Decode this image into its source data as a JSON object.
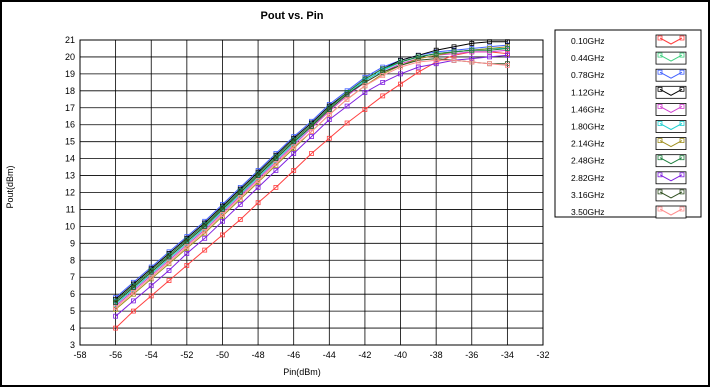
{
  "chart_data": {
    "type": "line",
    "title": "Pout vs. Pin",
    "xlabel": "Pin(dBm)",
    "ylabel": "Pout(dBm)",
    "xlim": [
      -58,
      -32
    ],
    "ylim": [
      3,
      21
    ],
    "x_ticks": [
      -58,
      -56,
      -54,
      -52,
      -50,
      -48,
      -46,
      -44,
      -42,
      -40,
      -38,
      -36,
      -34,
      -32
    ],
    "y_ticks": [
      3,
      4,
      5,
      6,
      7,
      8,
      9,
      10,
      11,
      12,
      13,
      14,
      15,
      16,
      17,
      18,
      19,
      20,
      21
    ],
    "grid": true,
    "legend_position": "top-right",
    "x": [
      -56.5,
      -56,
      -55.5,
      -55,
      -54.5,
      -54,
      -53.5,
      -53,
      -52.5,
      -52,
      -51.5,
      -51,
      -50.5,
      -50,
      -49.5,
      -49,
      -48.5,
      -48,
      -47.5,
      -47,
      -46.5,
      -46,
      -45.5,
      -45,
      -44.5,
      -44,
      -43.5,
      -43,
      -42.5,
      -42,
      -41.5,
      -41,
      -40.5,
      -40,
      -39.5,
      -39,
      -38.5,
      -38,
      -37.5,
      -37,
      -36.5,
      -36,
      -35.5,
      -35,
      -34.5,
      -34
    ],
    "series": [
      {
        "name": "0.10GHz",
        "color": "#ff4040",
        "marker": "square",
        "values": [
          null,
          4.0,
          null,
          5.0,
          null,
          5.9,
          null,
          6.8,
          null,
          7.7,
          null,
          8.6,
          null,
          9.5,
          null,
          10.4,
          null,
          11.4,
          null,
          12.3,
          null,
          13.3,
          null,
          14.3,
          null,
          15.2,
          null,
          16.1,
          null,
          16.9,
          null,
          17.7,
          null,
          18.4,
          null,
          19.1,
          null,
          19.7,
          null,
          20.1,
          null,
          20.3,
          null,
          20.3,
          null,
          20.2
        ]
      },
      {
        "name": "0.44GHz",
        "color": "#40d080",
        "marker": "square",
        "values": [
          null,
          5.5,
          null,
          6.4,
          null,
          7.3,
          null,
          8.2,
          null,
          9.1,
          null,
          10.0,
          null,
          11.0,
          null,
          12.0,
          null,
          13.0,
          null,
          14.0,
          null,
          15.0,
          null,
          15.9,
          null,
          16.9,
          null,
          17.8,
          null,
          18.6,
          null,
          19.2,
          null,
          19.7,
          null,
          20.0,
          null,
          20.2,
          null,
          20.3,
          null,
          20.4,
          null,
          20.5,
          null,
          20.5
        ]
      },
      {
        "name": "0.78GHz",
        "color": "#4060ff",
        "marker": "square",
        "values": [
          null,
          5.8,
          null,
          6.7,
          null,
          7.6,
          null,
          8.5,
          null,
          9.4,
          null,
          10.3,
          null,
          11.3,
          null,
          12.3,
          null,
          13.3,
          null,
          14.3,
          null,
          15.3,
          null,
          16.2,
          null,
          17.2,
          null,
          18.0,
          null,
          18.8,
          null,
          19.4,
          null,
          19.8,
          null,
          20.1,
          null,
          20.3,
          null,
          20.4,
          null,
          20.5,
          null,
          20.6,
          null,
          20.7
        ]
      },
      {
        "name": "1.12GHz",
        "color": "#000000",
        "marker": "square",
        "values": [
          null,
          5.7,
          null,
          6.6,
          null,
          7.5,
          null,
          8.4,
          null,
          9.3,
          null,
          10.2,
          null,
          11.2,
          null,
          12.2,
          null,
          13.2,
          null,
          14.2,
          null,
          15.2,
          null,
          16.1,
          null,
          17.1,
          null,
          17.9,
          null,
          18.7,
          null,
          19.3,
          null,
          19.8,
          null,
          20.1,
          null,
          20.4,
          null,
          20.6,
          null,
          20.8,
          null,
          20.9,
          null,
          20.9
        ]
      },
      {
        "name": "1.46GHz",
        "color": "#d040d0",
        "marker": "square",
        "values": [
          null,
          5.3,
          null,
          6.2,
          null,
          7.1,
          null,
          8.0,
          null,
          8.9,
          null,
          9.8,
          null,
          10.8,
          null,
          11.8,
          null,
          12.8,
          null,
          13.8,
          null,
          14.8,
          null,
          15.8,
          null,
          16.8,
          null,
          17.7,
          null,
          18.5,
          null,
          19.1,
          null,
          19.6,
          null,
          19.9,
          null,
          20.1,
          null,
          20.2,
          null,
          20.3,
          null,
          20.3,
          null,
          20.4
        ]
      },
      {
        "name": "1.80GHz",
        "color": "#20d0d0",
        "marker": "square",
        "values": [
          null,
          5.4,
          null,
          6.3,
          null,
          7.2,
          null,
          8.1,
          null,
          9.0,
          null,
          9.9,
          null,
          10.9,
          null,
          11.9,
          null,
          12.9,
          null,
          13.9,
          null,
          14.9,
          null,
          15.9,
          null,
          16.9,
          null,
          17.8,
          null,
          18.6,
          null,
          19.2,
          null,
          19.7,
          null,
          20.0,
          null,
          20.2,
          null,
          20.3,
          null,
          20.4,
          null,
          20.5,
          null,
          20.5
        ]
      },
      {
        "name": "2.14GHz",
        "color": "#a09020",
        "marker": "square",
        "values": [
          null,
          5.1,
          null,
          6.0,
          null,
          6.9,
          null,
          7.8,
          null,
          8.7,
          null,
          9.6,
          null,
          10.6,
          null,
          11.6,
          null,
          12.6,
          null,
          13.6,
          null,
          14.6,
          null,
          15.6,
          null,
          16.6,
          null,
          17.5,
          null,
          18.3,
          null,
          19.0,
          null,
          19.5,
          null,
          19.9,
          null,
          20.1,
          null,
          20.3,
          null,
          20.4,
          null,
          20.5,
          null,
          20.6
        ]
      },
      {
        "name": "2.48GHz",
        "color": "#208040",
        "marker": "square",
        "values": [
          null,
          5.6,
          null,
          6.5,
          null,
          7.4,
          null,
          8.3,
          null,
          9.2,
          null,
          10.1,
          null,
          11.1,
          null,
          12.1,
          null,
          13.1,
          null,
          14.1,
          null,
          15.1,
          null,
          16.0,
          null,
          17.0,
          null,
          17.9,
          null,
          18.7,
          null,
          19.3,
          null,
          19.7,
          null,
          20.0,
          null,
          20.2,
          null,
          20.3,
          null,
          20.4,
          null,
          20.4,
          null,
          20.5
        ]
      },
      {
        "name": "2.82GHz",
        "color": "#8020e0",
        "marker": "square",
        "values": [
          null,
          4.7,
          null,
          5.6,
          null,
          6.5,
          null,
          7.4,
          null,
          8.4,
          null,
          9.3,
          null,
          10.3,
          null,
          11.3,
          null,
          12.3,
          null,
          13.3,
          null,
          14.3,
          null,
          15.3,
          null,
          16.3,
          null,
          17.1,
          null,
          17.9,
          null,
          18.5,
          null,
          19.0,
          null,
          19.4,
          null,
          19.6,
          null,
          19.8,
          null,
          19.9,
          null,
          20.0,
          null,
          20.1
        ]
      },
      {
        "name": "3.16GHz",
        "color": "#305020",
        "marker": "square",
        "values": [
          null,
          5.5,
          null,
          6.4,
          null,
          7.3,
          null,
          8.2,
          null,
          9.1,
          null,
          10.0,
          null,
          11.0,
          null,
          12.0,
          null,
          13.0,
          null,
          14.0,
          null,
          15.0,
          null,
          15.9,
          null,
          16.9,
          null,
          17.8,
          null,
          18.5,
          null,
          19.1,
          null,
          19.5,
          null,
          19.8,
          null,
          19.9,
          null,
          19.8,
          null,
          19.7,
          null,
          19.6,
          null,
          19.6
        ]
      },
      {
        "name": "3.50GHz",
        "color": "#ff9090",
        "marker": "square",
        "values": [
          null,
          5.2,
          null,
          6.1,
          null,
          7.0,
          null,
          7.9,
          null,
          8.8,
          null,
          9.7,
          null,
          10.7,
          null,
          11.7,
          null,
          12.7,
          null,
          13.7,
          null,
          14.7,
          null,
          15.6,
          null,
          16.6,
          null,
          17.5,
          null,
          18.3,
          null,
          18.9,
          null,
          19.4,
          null,
          19.7,
          null,
          19.8,
          null,
          19.8,
          null,
          19.7,
          null,
          19.6,
          null,
          19.5
        ]
      }
    ]
  }
}
